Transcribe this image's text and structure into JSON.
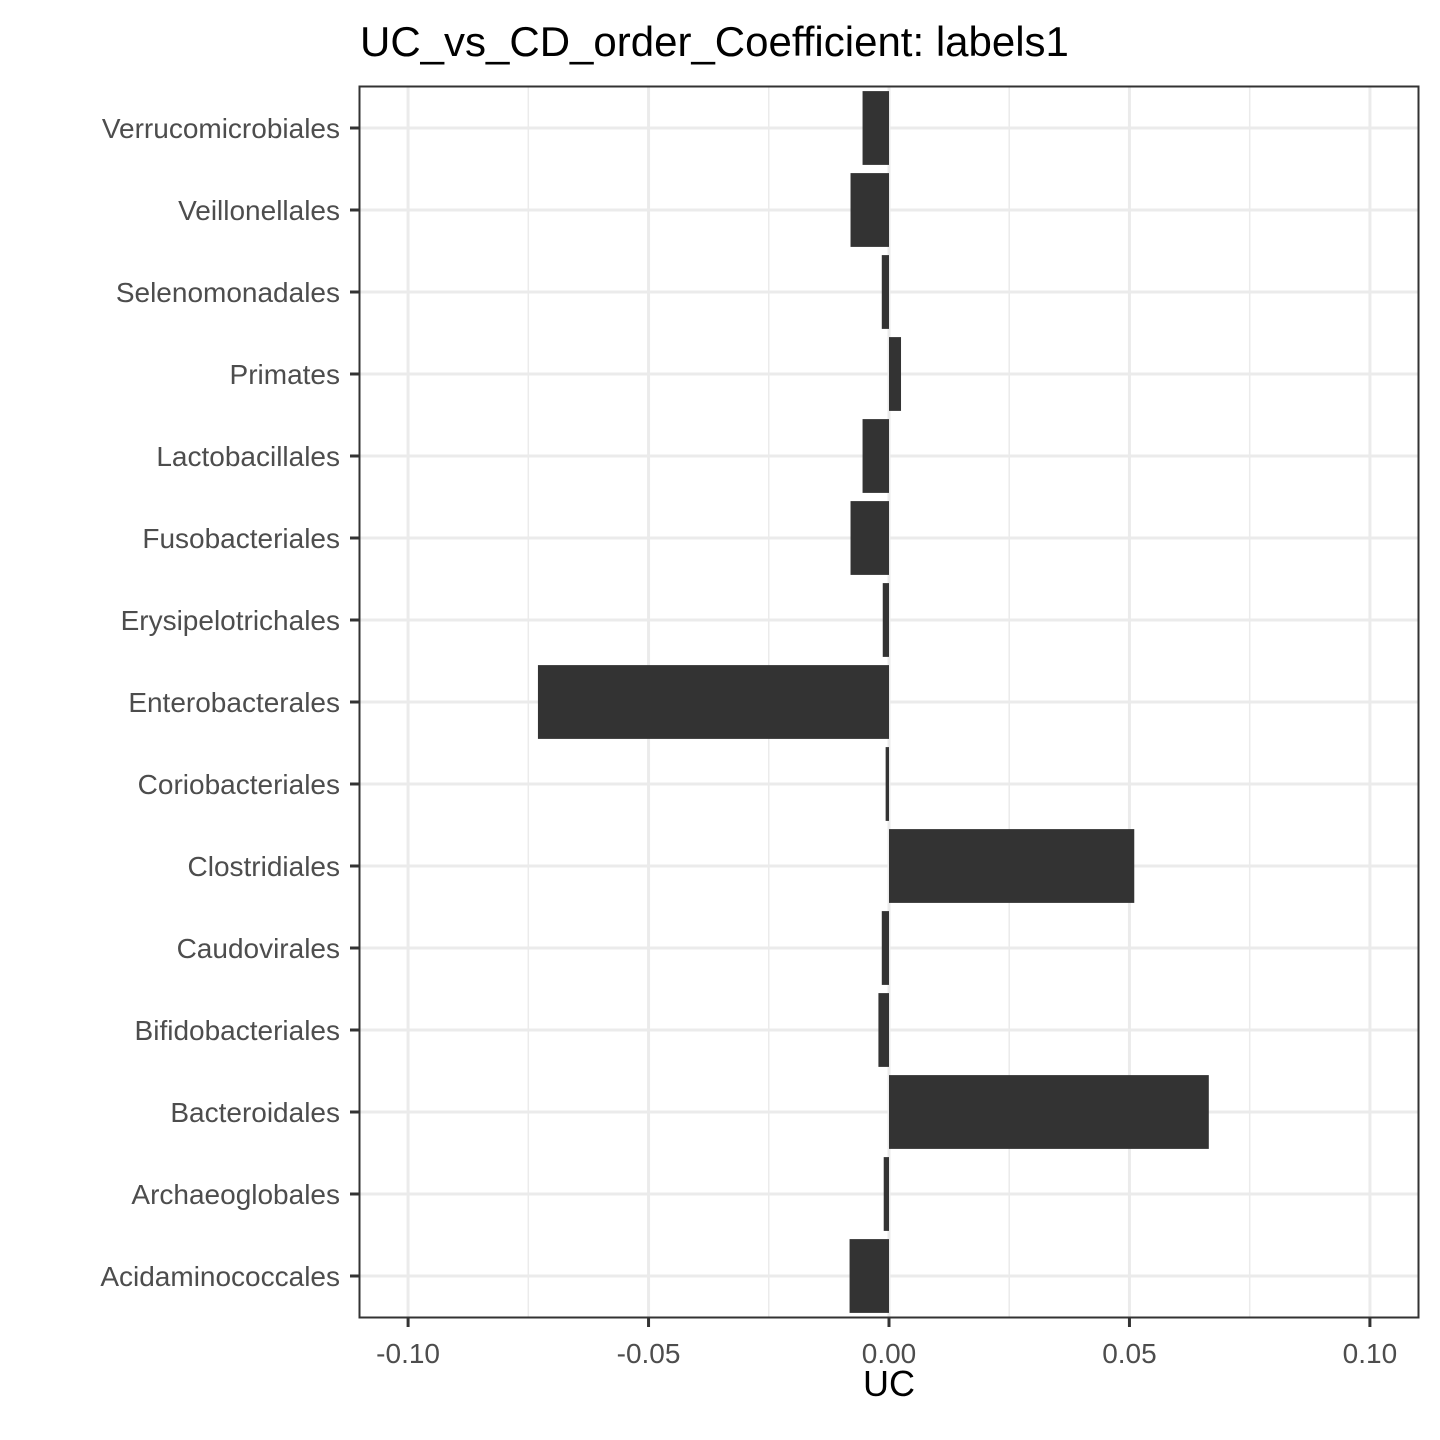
{
  "chart_data": {
    "type": "bar",
    "orientation": "horizontal",
    "title": "UC_vs_CD_order_Coefficient: labels1",
    "xlabel": "UC",
    "ylabel": "",
    "xlim": [
      -0.11,
      0.11
    ],
    "x_ticks": [
      -0.1,
      -0.05,
      0.0,
      0.05,
      0.1
    ],
    "x_tick_labels": [
      "-0.10",
      "-0.05",
      "0.00",
      "0.05",
      "0.10"
    ],
    "grid": true,
    "legend": "none",
    "bar_color": "#333333",
    "categories": [
      "Verrucomicrobiales",
      "Veillonellales",
      "Selenomonadales",
      "Primates",
      "Lactobacillales",
      "Fusobacteriales",
      "Erysipelotrichales",
      "Enterobacterales",
      "Coriobacteriales",
      "Clostridiales",
      "Caudovirales",
      "Bifidobacteriales",
      "Bacteroidales",
      "Archaeoglobales",
      "Acidaminococcales"
    ],
    "values": [
      -0.0055,
      -0.008,
      -0.0015,
      0.0025,
      -0.0055,
      -0.008,
      -0.0013,
      -0.073,
      -0.0007,
      0.051,
      -0.0015,
      -0.0022,
      0.0665,
      -0.0011,
      -0.0082
    ]
  }
}
